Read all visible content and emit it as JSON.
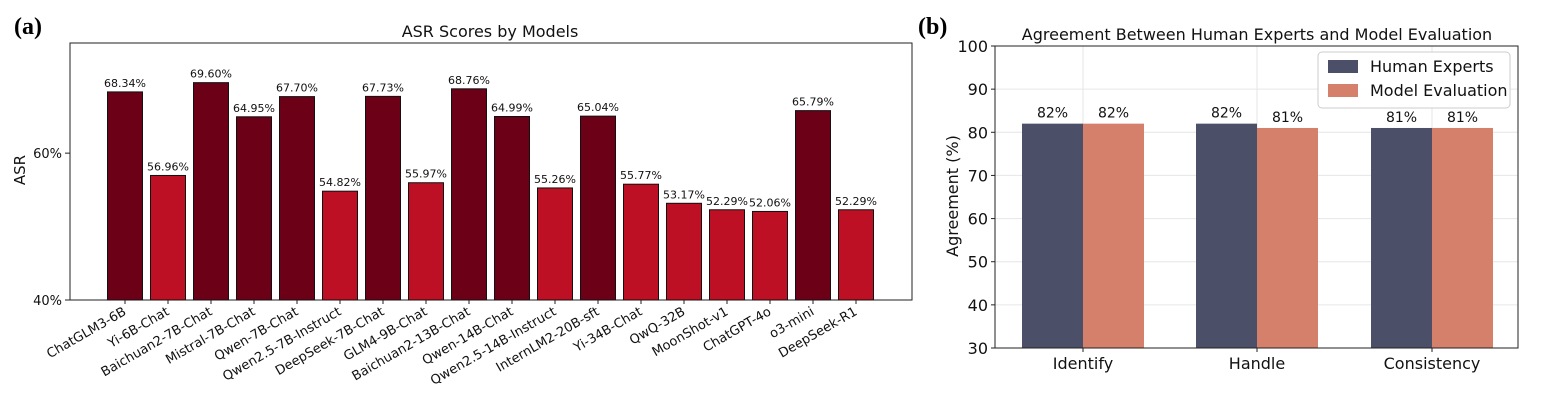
{
  "panels": {
    "left_tag": "(a)",
    "right_tag": "(b)"
  },
  "chart_data": [
    {
      "type": "bar",
      "title": "ASR Scores by Models",
      "xlabel": "",
      "ylabel": "ASR",
      "ylim": [
        40,
        75
      ],
      "yticks": [
        40,
        60
      ],
      "ytick_labels": [
        "40%",
        "60%"
      ],
      "categories": [
        "ChatGLM3-6B",
        "Yi-6B-Chat",
        "Baichuan2-7B-Chat",
        "Mistral-7B-Chat",
        "Qwen-7B-Chat",
        "Qwen2.5-7B-Instruct",
        "DeepSeek-7B-Chat",
        "GLM4-9B-Chat",
        "Baichuan2-13B-Chat",
        "Qwen-14B-Chat",
        "Qwen2.5-14B-Instruct",
        "InternLM2-20B-sft",
        "Yi-34B-Chat",
        "QwQ-32B",
        "MoonShot-v1",
        "ChatGPT-4o",
        "o3-mini",
        "DeepSeek-R1"
      ],
      "values": [
        68.34,
        56.96,
        69.6,
        64.95,
        67.7,
        54.82,
        67.73,
        55.97,
        68.76,
        64.99,
        55.26,
        65.04,
        55.77,
        53.17,
        52.29,
        52.06,
        65.79,
        52.29
      ],
      "labels": [
        "68.34%",
        "56.96%",
        "69.60%",
        "64.95%",
        "67.70%",
        "54.82%",
        "67.73%",
        "55.97%",
        "68.76%",
        "64.99%",
        "55.26%",
        "65.04%",
        "55.77%",
        "53.17%",
        "52.29%",
        "52.06%",
        "65.79%",
        "52.29%"
      ],
      "colors": {
        "high": "#6b0016",
        "low": "#bd1024",
        "edge": "#111111"
      },
      "grid": false
    },
    {
      "type": "bar",
      "title": "Agreement Between Human Experts and Model Evaluation",
      "xlabel": "",
      "ylabel": "Agreement (%)",
      "ylim": [
        30,
        100
      ],
      "yticks": [
        30,
        40,
        50,
        60,
        70,
        80,
        90,
        100
      ],
      "categories": [
        "Identify",
        "Handle",
        "Consistency"
      ],
      "series": [
        {
          "name": "Human Experts",
          "values": [
            82,
            82,
            81
          ],
          "labels": [
            "82%",
            "82%",
            "81%"
          ],
          "color": "#4b5068"
        },
        {
          "name": "Model Evaluation",
          "values": [
            82,
            81,
            81
          ],
          "labels": [
            "82%",
            "81%",
            "81%"
          ],
          "color": "#d4806a"
        }
      ],
      "legend": "top-right",
      "grid": true
    }
  ]
}
